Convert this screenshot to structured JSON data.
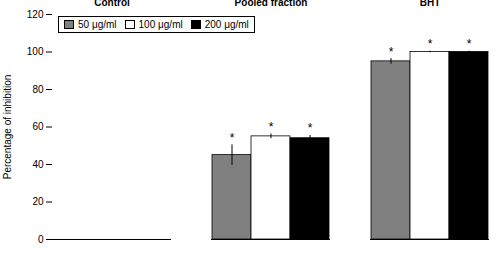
{
  "chart_data": {
    "type": "bar",
    "categories": [
      "Control",
      "Pooled fraction",
      "BHT"
    ],
    "series": [
      {
        "name": "50 μg/ml",
        "color": "#808080",
        "values": [
          0,
          45.0,
          95.0
        ],
        "errors": [
          0,
          5.5,
          1.5
        ]
      },
      {
        "name": "100 μg/ml",
        "color": "#ffffff",
        "values": [
          0,
          55.0,
          100.0
        ],
        "errors": [
          0,
          1.2,
          0.4
        ]
      },
      {
        "name": "200 μg/ml",
        "color": "#000000",
        "values": [
          0,
          54.0,
          100.0
        ],
        "errors": [
          0,
          1.5,
          0.4
        ]
      }
    ],
    "ylabel": "Percentage of inhibition",
    "ylim": [
      0,
      120
    ],
    "yticks": [
      0,
      20,
      40,
      60,
      80,
      100,
      120
    ],
    "legend": "upper left",
    "annotations": [
      {
        "text": "*",
        "category": "Pooled fraction",
        "series": "50 μg/ml"
      },
      {
        "text": "*",
        "category": "Pooled fraction",
        "series": "100 μg/ml"
      },
      {
        "text": "*",
        "category": "Pooled fraction",
        "series": "200 μg/ml"
      },
      {
        "text": "*",
        "category": "BHT",
        "series": "50 μg/ml"
      },
      {
        "text": "*",
        "category": "BHT",
        "series": "100 μg/ml"
      },
      {
        "text": "*",
        "category": "BHT",
        "series": "200 μg/ml"
      }
    ]
  }
}
